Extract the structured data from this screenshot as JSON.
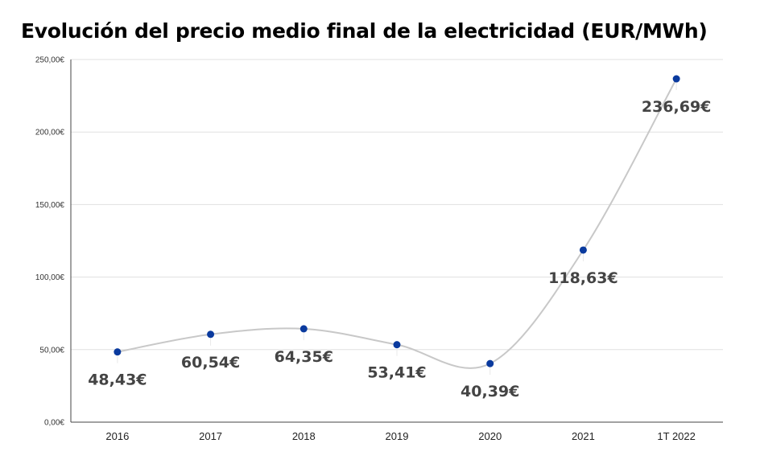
{
  "chart_data": {
    "type": "line",
    "title": "Evolución del precio medio final de la electricidad (EUR/MWh)",
    "xlabel": "",
    "ylabel": "",
    "categories": [
      "2016",
      "2017",
      "2018",
      "2019",
      "2020",
      "2021",
      "1T 2022"
    ],
    "series": [
      {
        "values": [
          48.43,
          60.54,
          64.35,
          53.41,
          40.39,
          118.63,
          236.69
        ]
      }
    ],
    "data_labels": [
      "48,43€",
      "60,54€",
      "64,35€",
      "53,41€",
      "40,39€",
      "118,63€",
      "236,69€"
    ],
    "ylim": [
      0,
      250
    ],
    "yticks": [
      0,
      50,
      100,
      150,
      200,
      250
    ],
    "ytick_labels": [
      "0,00€",
      "50,00€",
      "100,00€",
      "150,00€",
      "200,00€",
      "250,00€"
    ],
    "grid": true,
    "smooth": true,
    "legend": "none",
    "colors": {
      "line": "#c8c8c8",
      "marker": "#0a3a9e",
      "grid": "#e0e0e0",
      "axis": "#444444"
    }
  }
}
